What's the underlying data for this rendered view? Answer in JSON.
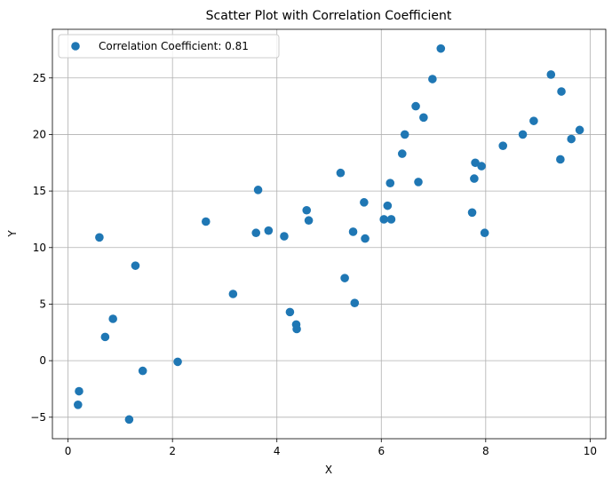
{
  "chart_data": {
    "type": "scatter",
    "title": "Scatter Plot with Correlation Coefficient",
    "xlabel": "X",
    "ylabel": "Y",
    "xlim": [
      -0.3,
      10.3
    ],
    "ylim": [
      -6.9,
      29.3
    ],
    "xticks": [
      0,
      2,
      4,
      6,
      8,
      10
    ],
    "yticks": [
      -5,
      0,
      5,
      10,
      15,
      20,
      25
    ],
    "grid": true,
    "legend_position": "top-left",
    "color": "#1f77b4",
    "series": [
      {
        "name": "Correlation Coefficient: 0.81",
        "points": [
          [
            0.19,
            -3.9
          ],
          [
            0.21,
            -2.7
          ],
          [
            0.6,
            10.9
          ],
          [
            0.71,
            2.1
          ],
          [
            0.86,
            3.7
          ],
          [
            1.17,
            -5.2
          ],
          [
            1.29,
            8.4
          ],
          [
            1.43,
            -0.9
          ],
          [
            2.1,
            -0.1
          ],
          [
            2.64,
            12.3
          ],
          [
            3.16,
            5.9
          ],
          [
            3.6,
            11.3
          ],
          [
            3.64,
            15.1
          ],
          [
            3.84,
            11.5
          ],
          [
            4.14,
            11.0
          ],
          [
            4.25,
            4.3
          ],
          [
            4.37,
            3.2
          ],
          [
            4.38,
            2.8
          ],
          [
            4.57,
            13.3
          ],
          [
            4.61,
            12.4
          ],
          [
            5.22,
            16.6
          ],
          [
            5.3,
            7.3
          ],
          [
            5.46,
            11.4
          ],
          [
            5.49,
            5.1
          ],
          [
            5.67,
            14.0
          ],
          [
            5.69,
            10.8
          ],
          [
            6.05,
            12.5
          ],
          [
            6.12,
            13.7
          ],
          [
            6.17,
            15.7
          ],
          [
            6.19,
            12.5
          ],
          [
            6.4,
            18.3
          ],
          [
            6.45,
            20.0
          ],
          [
            6.66,
            22.5
          ],
          [
            6.71,
            15.8
          ],
          [
            6.81,
            21.5
          ],
          [
            6.98,
            24.9
          ],
          [
            7.14,
            27.6
          ],
          [
            7.74,
            13.1
          ],
          [
            7.78,
            16.1
          ],
          [
            7.8,
            17.5
          ],
          [
            7.92,
            17.2
          ],
          [
            7.98,
            11.3
          ],
          [
            8.33,
            19.0
          ],
          [
            8.71,
            20.0
          ],
          [
            8.92,
            21.2
          ],
          [
            9.25,
            25.3
          ],
          [
            9.43,
            17.8
          ],
          [
            9.45,
            23.8
          ],
          [
            9.64,
            19.6
          ],
          [
            9.8,
            20.4
          ]
        ]
      }
    ]
  }
}
